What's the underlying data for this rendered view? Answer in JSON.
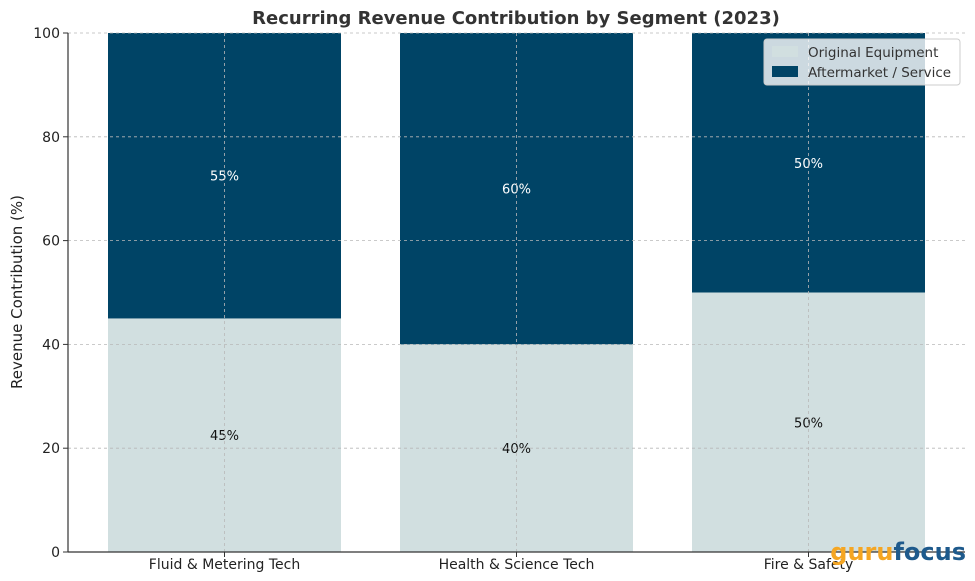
{
  "chart_data": {
    "type": "bar",
    "stacked": true,
    "title": "Recurring Revenue Contribution by Segment (2023)",
    "xlabel": "",
    "ylabel": "Revenue Contribution (%)",
    "ylim": [
      0,
      100
    ],
    "yticks": [
      "0",
      "20",
      "40",
      "60",
      "80",
      "100"
    ],
    "grid": true,
    "legend_position": "top-right",
    "categories": [
      "Fluid & Metering Tech",
      "Health & Science Tech",
      "Fire & Safety"
    ],
    "series": [
      {
        "name": "Original Equipment",
        "values": [
          45,
          40,
          50
        ],
        "labels": [
          "45%",
          "40%",
          "50%"
        ],
        "color": "#d1dfe0",
        "label_color": "#111111"
      },
      {
        "name": "Aftermarket / Service",
        "values": [
          55,
          60,
          50
        ],
        "labels": [
          "55%",
          "60%",
          "50%"
        ],
        "color": "#004466",
        "label_color": "#ffffff"
      }
    ]
  },
  "watermark": {
    "part1": "guru",
    "part2": "focus",
    "color1": "#f5a623",
    "color2": "#1e5a8c"
  }
}
